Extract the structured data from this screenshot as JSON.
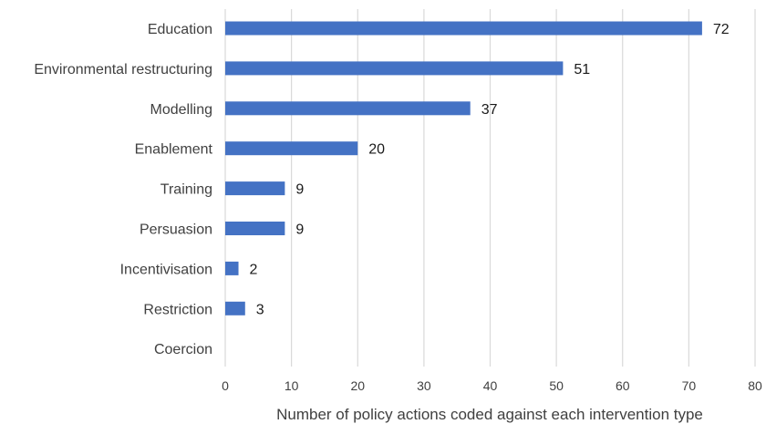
{
  "chart_data": {
    "type": "bar",
    "orientation": "horizontal",
    "categories": [
      "Education",
      "Environmental restructuring",
      "Modelling",
      "Enablement",
      "Training",
      "Persuasion",
      "Incentivisation",
      "Restriction",
      "Coercion"
    ],
    "values": [
      72,
      51,
      37,
      20,
      9,
      9,
      2,
      3,
      null
    ],
    "data_labels": [
      "72",
      "51",
      "37",
      "20",
      "9",
      "9",
      "2",
      "3",
      ""
    ],
    "xlabel": "Number of policy actions coded against each intervention type",
    "ylabel": "",
    "xlim": [
      0,
      80
    ],
    "xticks": [
      0,
      10,
      20,
      30,
      40,
      50,
      60,
      70,
      80
    ],
    "grid": "vertical",
    "legend": "none",
    "bar_color": "#4472C4",
    "grid_color": "#d9d9d9"
  }
}
